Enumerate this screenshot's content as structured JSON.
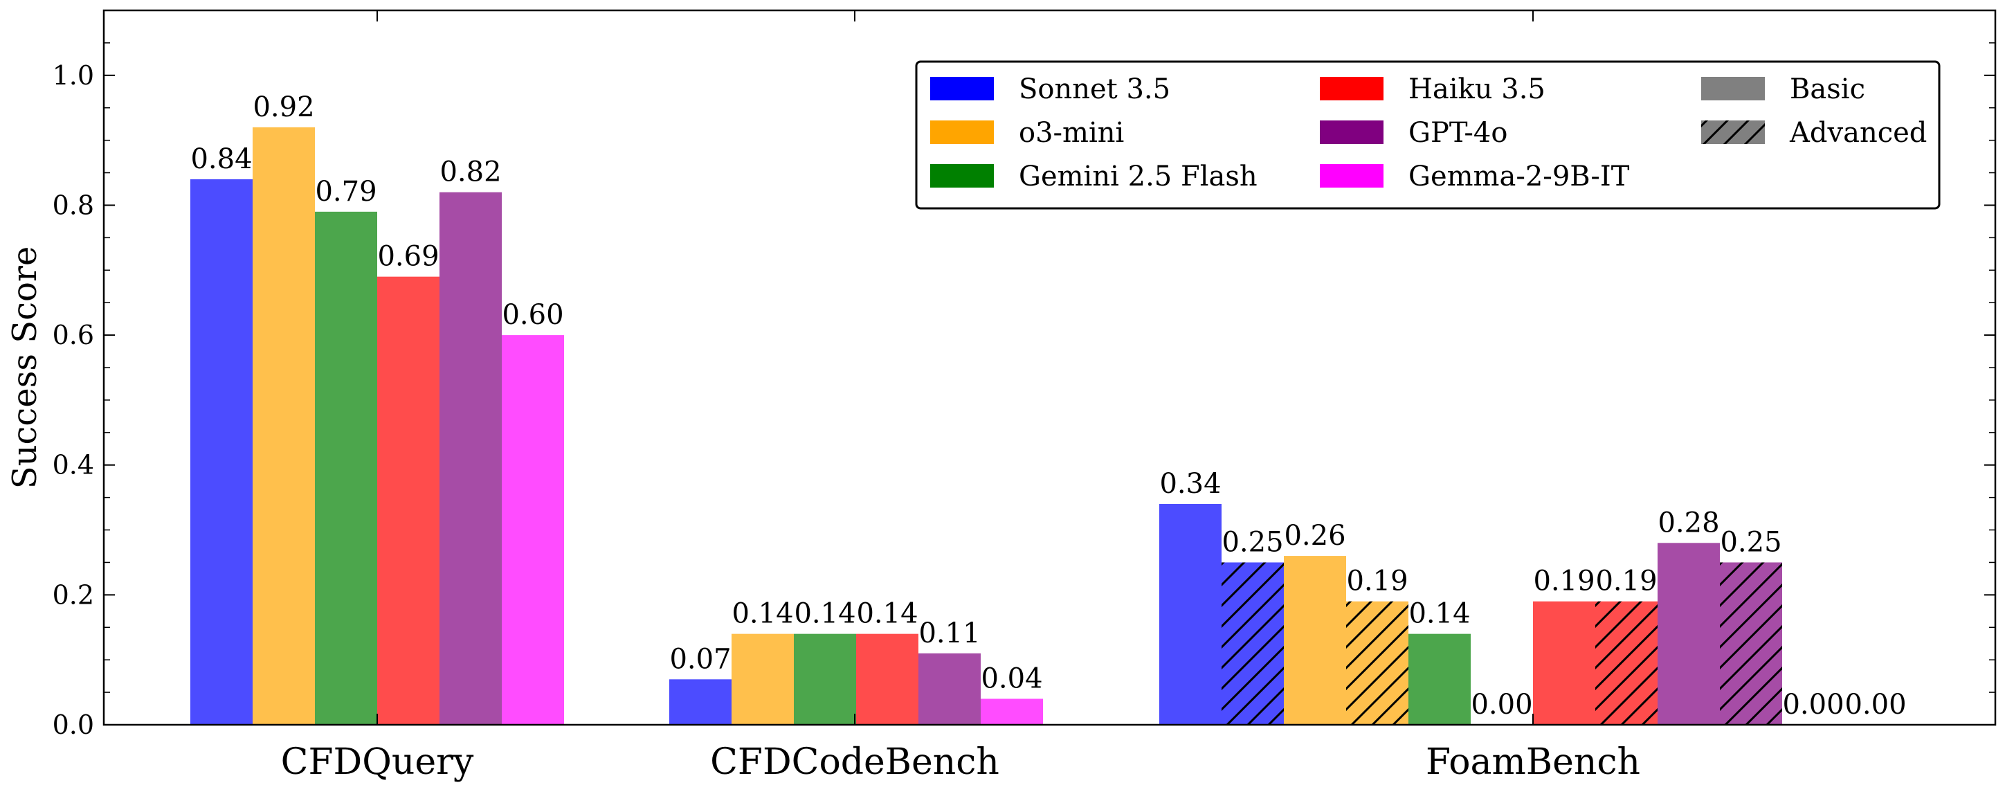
{
  "chart_data": {
    "type": "bar",
    "title": "",
    "xlabel": "",
    "ylabel": "Success Score",
    "ylim": [
      0,
      1.1
    ],
    "yticks": [
      "0.0",
      "0.2",
      "0.4",
      "0.6",
      "0.8",
      "1.0"
    ],
    "grid": false,
    "legend_position": "top-right",
    "categories": [
      "CFDQuery",
      "CFDCodeBench",
      "FoamBench"
    ],
    "models": [
      {
        "name": "Sonnet 3.5",
        "color": "#0000ff"
      },
      {
        "name": "o3-mini",
        "color": "#ffa500"
      },
      {
        "name": "Gemini 2.5 Flash",
        "color": "#008000"
      },
      {
        "name": "Haiku 3.5",
        "color": "#ff0000"
      },
      {
        "name": "GPT-4o",
        "color": "#800080"
      },
      {
        "name": "Gemma-2-9B-IT",
        "color": "#ff00ff"
      }
    ],
    "modes": [
      {
        "name": "Basic",
        "hatch": false
      },
      {
        "name": "Advanced",
        "hatch": true
      }
    ],
    "groups": [
      {
        "category": "CFDQuery",
        "bars": [
          {
            "model": "Sonnet 3.5",
            "mode": "Basic",
            "value": 0.84,
            "label": "0.84"
          },
          {
            "model": "o3-mini",
            "mode": "Basic",
            "value": 0.92,
            "label": "0.92"
          },
          {
            "model": "Gemini 2.5 Flash",
            "mode": "Basic",
            "value": 0.79,
            "label": "0.79"
          },
          {
            "model": "Haiku 3.5",
            "mode": "Basic",
            "value": 0.69,
            "label": "0.69"
          },
          {
            "model": "GPT-4o",
            "mode": "Basic",
            "value": 0.82,
            "label": "0.82"
          },
          {
            "model": "Gemma-2-9B-IT",
            "mode": "Basic",
            "value": 0.6,
            "label": "0.60"
          }
        ]
      },
      {
        "category": "CFDCodeBench",
        "bars": [
          {
            "model": "Sonnet 3.5",
            "mode": "Basic",
            "value": 0.07,
            "label": "0.07"
          },
          {
            "model": "o3-mini",
            "mode": "Basic",
            "value": 0.14,
            "label": "0.14"
          },
          {
            "model": "Gemini 2.5 Flash",
            "mode": "Basic",
            "value": 0.14,
            "label": "0.14"
          },
          {
            "model": "Haiku 3.5",
            "mode": "Basic",
            "value": 0.14,
            "label": "0.14"
          },
          {
            "model": "GPT-4o",
            "mode": "Basic",
            "value": 0.11,
            "label": "0.11"
          },
          {
            "model": "Gemma-2-9B-IT",
            "mode": "Basic",
            "value": 0.04,
            "label": "0.04"
          }
        ]
      },
      {
        "category": "FoamBench",
        "bars": [
          {
            "model": "Sonnet 3.5",
            "mode": "Basic",
            "value": 0.34,
            "label": "0.34"
          },
          {
            "model": "Sonnet 3.5",
            "mode": "Advanced",
            "value": 0.25,
            "label": "0.25"
          },
          {
            "model": "o3-mini",
            "mode": "Basic",
            "value": 0.26,
            "label": "0.26"
          },
          {
            "model": "o3-mini",
            "mode": "Advanced",
            "value": 0.19,
            "label": "0.19"
          },
          {
            "model": "Gemini 2.5 Flash",
            "mode": "Basic",
            "value": 0.14,
            "label": "0.14"
          },
          {
            "model": "Gemini 2.5 Flash",
            "mode": "Advanced",
            "value": 0.0,
            "label": "0.00"
          },
          {
            "model": "Haiku 3.5",
            "mode": "Basic",
            "value": 0.19,
            "label": "0.19"
          },
          {
            "model": "Haiku 3.5",
            "mode": "Advanced",
            "value": 0.19,
            "label": "0.19"
          },
          {
            "model": "GPT-4o",
            "mode": "Basic",
            "value": 0.28,
            "label": "0.28"
          },
          {
            "model": "GPT-4o",
            "mode": "Advanced",
            "value": 0.25,
            "label": "0.25"
          },
          {
            "model": "Gemma-2-9B-IT",
            "mode": "Basic",
            "value": 0.0,
            "label": "0.00"
          },
          {
            "model": "Gemma-2-9B-IT",
            "mode": "Advanced",
            "value": 0.0,
            "label": "0.00"
          }
        ]
      }
    ],
    "legend": {
      "entries": [
        {
          "label": "Sonnet 3.5",
          "color": "#0000ff",
          "hatch": false
        },
        {
          "label": "o3-mini",
          "color": "#ffa500",
          "hatch": false
        },
        {
          "label": "Gemini 2.5 Flash",
          "color": "#008000",
          "hatch": false
        },
        {
          "label": "Haiku 3.5",
          "color": "#ff0000",
          "hatch": false
        },
        {
          "label": "GPT-4o",
          "color": "#800080",
          "hatch": false
        },
        {
          "label": "Gemma-2-9B-IT",
          "color": "#ff00ff",
          "hatch": false
        },
        {
          "label": "Basic",
          "color": "#808080",
          "hatch": false
        },
        {
          "label": "Advanced",
          "color": "#808080",
          "hatch": true
        }
      ]
    }
  }
}
